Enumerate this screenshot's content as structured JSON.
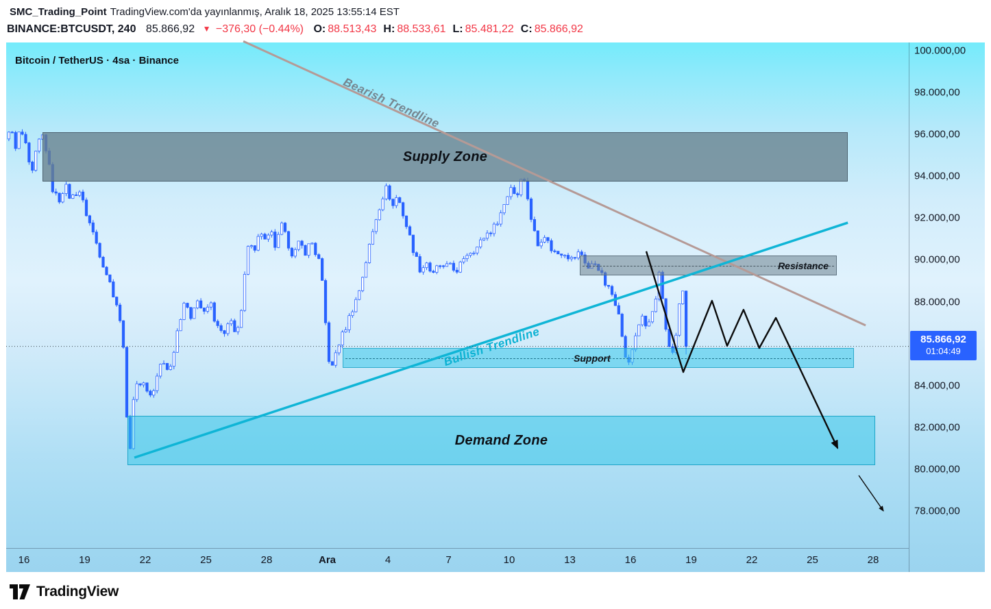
{
  "header": {
    "author": "SMC_Trading_Point",
    "published": "TradingView.com'da yayınlanmış, Aralık 18, 2025 13:55:14 EST",
    "symbol_interval": "BINANCE:BTCUSDT, 240",
    "last_price": "85.866,92",
    "change_icon": "▼",
    "change": "−376,30 (−0.44%)",
    "ohlc": [
      {
        "label": "O:",
        "value": "88.513,43"
      },
      {
        "label": "H:",
        "value": "88.533,61"
      },
      {
        "label": "L:",
        "value": "85.481,22"
      },
      {
        "label": "C:",
        "value": "85.866,92"
      }
    ]
  },
  "chart": {
    "watermark": "Bitcoin / TetherUS · 4sa · Binance",
    "zones": {
      "supply": {
        "label": "Supply Zone"
      },
      "demand": {
        "label": "Demand Zone"
      },
      "resistance": {
        "label": "Resistance"
      },
      "support": {
        "label": "Support"
      }
    },
    "trendlines": {
      "bearish": {
        "label": "Bearish Trendline"
      },
      "bullish": {
        "label": "Bullish Trendline"
      }
    },
    "price_label": {
      "price": "85.866,92",
      "countdown": "01:04:49"
    }
  },
  "chart_data": {
    "type": "candlestick",
    "symbol": "BINANCE:BTCUSDT",
    "title": "Bitcoin / TetherUS · 4sa · Binance",
    "interval_minutes": 240,
    "current_price": 85866.92,
    "y_range": [
      77600,
      100400
    ],
    "last_candle_ohlc": {
      "open": 88513.43,
      "high": 88533.61,
      "low": 85481.22,
      "close": 85866.92
    },
    "price_axis": [
      {
        "label": "100.000,00",
        "value": 100000
      },
      {
        "label": "98.000,00",
        "value": 98000
      },
      {
        "label": "96.000,00",
        "value": 96000
      },
      {
        "label": "94.000,00",
        "value": 94000
      },
      {
        "label": "92.000,00",
        "value": 92000
      },
      {
        "label": "90.000,00",
        "value": 90000
      },
      {
        "label": "88.000,00",
        "value": 88000
      },
      {
        "label": "84.000,00",
        "value": 84000
      },
      {
        "label": "82.000,00",
        "value": 82000
      },
      {
        "label": "80.000,00",
        "value": 80000
      },
      {
        "label": "78.000,00",
        "value": 78000
      }
    ],
    "time_axis": [
      {
        "label": "16",
        "day": 0
      },
      {
        "label": "19",
        "day": 3
      },
      {
        "label": "22",
        "day": 6
      },
      {
        "label": "25",
        "day": 9
      },
      {
        "label": "28",
        "day": 12
      },
      {
        "label": "Ara",
        "day": 15,
        "bold": true
      },
      {
        "label": "4",
        "day": 18
      },
      {
        "label": "7",
        "day": 21
      },
      {
        "label": "10",
        "day": 24
      },
      {
        "label": "13",
        "day": 27
      },
      {
        "label": "16",
        "day": 30
      },
      {
        "label": "19",
        "day": 33
      },
      {
        "label": "22",
        "day": 36
      },
      {
        "label": "25",
        "day": 39
      },
      {
        "label": "28",
        "day": 42
      }
    ],
    "zones": {
      "supply": {
        "day_start": 0.92,
        "day_end": 40.75,
        "price_top": 96100,
        "price_bottom": 93750
      },
      "demand": {
        "day_start": 5.12,
        "day_end": 42.1,
        "price_top": 82550,
        "price_bottom": 80200
      },
      "resistance": {
        "day_start": 27.49,
        "day_end": 40.2,
        "price_top": 90200,
        "price_bottom": 89250
      },
      "support": {
        "day_start": 15.76,
        "day_end": 41.05,
        "price_top": 85800,
        "price_bottom": 84850
      }
    },
    "trendlines": {
      "bearish": {
        "day1": 10.85,
        "price1": 100450,
        "day2": 41.63,
        "price2": 86870
      },
      "bullish": {
        "day1": 5.46,
        "price1": 80550,
        "day2": 40.75,
        "price2": 91780
      }
    },
    "projection_path": [
      [
        30.78,
        90410
      ],
      [
        32.61,
        84640
      ],
      [
        34.03,
        88050
      ],
      [
        34.78,
        85890
      ],
      [
        35.59,
        87620
      ],
      [
        36.37,
        85790
      ],
      [
        37.19,
        87230
      ],
      [
        40.24,
        81010
      ]
    ],
    "continuation_arrow": [
      [
        41.29,
        79700
      ],
      [
        42.51,
        78000
      ]
    ],
    "candles_start_day": -0.8333,
    "candle_count": 202,
    "price_path_waypoints": [
      [
        -0.85,
        95600
      ],
      [
        -0.6,
        96500
      ],
      [
        -0.35,
        95200
      ],
      [
        -0.1,
        96300
      ],
      [
        0.15,
        95500
      ],
      [
        0.45,
        93900
      ],
      [
        0.7,
        95200
      ],
      [
        0.95,
        96100
      ],
      [
        1.2,
        95200
      ],
      [
        1.5,
        93400
      ],
      [
        1.8,
        92800
      ],
      [
        2.1,
        93600
      ],
      [
        2.4,
        92900
      ],
      [
        2.8,
        93400
      ],
      [
        3.1,
        92400
      ],
      [
        3.5,
        91300
      ],
      [
        3.9,
        90100
      ],
      [
        4.3,
        89000
      ],
      [
        4.7,
        87800
      ],
      [
        5.0,
        86000
      ],
      [
        5.15,
        82500
      ],
      [
        5.3,
        80700
      ],
      [
        5.5,
        83400
      ],
      [
        5.75,
        84200
      ],
      [
        6.0,
        84100
      ],
      [
        6.4,
        83400
      ],
      [
        6.9,
        85200
      ],
      [
        7.3,
        84700
      ],
      [
        7.7,
        86800
      ],
      [
        8.0,
        88000
      ],
      [
        8.3,
        87200
      ],
      [
        8.6,
        88200
      ],
      [
        9.0,
        87400
      ],
      [
        9.3,
        88000
      ],
      [
        9.6,
        86800
      ],
      [
        10.0,
        86400
      ],
      [
        10.3,
        87100
      ],
      [
        10.6,
        86500
      ],
      [
        10.85,
        87500
      ],
      [
        11.05,
        89800
      ],
      [
        11.25,
        91000
      ],
      [
        11.5,
        90600
      ],
      [
        11.8,
        91400
      ],
      [
        12.05,
        90800
      ],
      [
        12.3,
        91300
      ],
      [
        12.55,
        90500
      ],
      [
        12.8,
        91700
      ],
      [
        13.1,
        90900
      ],
      [
        13.4,
        90200
      ],
      [
        13.7,
        90800
      ],
      [
        14.0,
        90400
      ],
      [
        14.3,
        90900
      ],
      [
        14.55,
        90200
      ],
      [
        14.75,
        89800
      ],
      [
        14.95,
        87500
      ],
      [
        15.15,
        85300
      ],
      [
        15.35,
        84800
      ],
      [
        15.55,
        85800
      ],
      [
        15.75,
        86200
      ],
      [
        16.0,
        86800
      ],
      [
        16.3,
        87600
      ],
      [
        16.6,
        88300
      ],
      [
        16.9,
        89500
      ],
      [
        17.2,
        90800
      ],
      [
        17.5,
        92000
      ],
      [
        17.8,
        93000
      ],
      [
        18.05,
        93500
      ],
      [
        18.3,
        92500
      ],
      [
        18.55,
        93100
      ],
      [
        18.8,
        92300
      ],
      [
        19.1,
        91300
      ],
      [
        19.4,
        90300
      ],
      [
        19.7,
        89500
      ],
      [
        20.0,
        89900
      ],
      [
        20.3,
        89200
      ],
      [
        20.6,
        89800
      ],
      [
        20.9,
        89500
      ],
      [
        21.2,
        89900
      ],
      [
        21.5,
        89300
      ],
      [
        21.8,
        90100
      ],
      [
        22.1,
        90400
      ],
      [
        22.5,
        90600
      ],
      [
        22.9,
        91200
      ],
      [
        23.3,
        91500
      ],
      [
        23.7,
        92300
      ],
      [
        24.0,
        93100
      ],
      [
        24.2,
        93600
      ],
      [
        24.45,
        92900
      ],
      [
        24.7,
        94200
      ],
      [
        24.95,
        93300
      ],
      [
        25.2,
        91800
      ],
      [
        25.5,
        90700
      ],
      [
        25.8,
        91300
      ],
      [
        26.1,
        90600
      ],
      [
        26.4,
        90300
      ],
      [
        26.8,
        90400
      ],
      [
        27.2,
        90000
      ],
      [
        27.6,
        90400
      ],
      [
        28.0,
        89600
      ],
      [
        28.4,
        89900
      ],
      [
        28.8,
        88900
      ],
      [
        29.2,
        88300
      ],
      [
        29.5,
        87600
      ],
      [
        29.75,
        85600
      ],
      [
        30.0,
        85000
      ],
      [
        30.3,
        86300
      ],
      [
        30.6,
        87300
      ],
      [
        30.9,
        86700
      ],
      [
        31.2,
        87600
      ],
      [
        31.45,
        88400
      ],
      [
        31.55,
        90100
      ],
      [
        31.7,
        87400
      ],
      [
        31.9,
        86300
      ],
      [
        32.1,
        85500
      ],
      [
        32.3,
        86100
      ],
      [
        32.5,
        87900
      ],
      [
        32.667,
        88513
      ],
      [
        32.833,
        85867
      ]
    ]
  },
  "footer": {
    "brand": "TradingView"
  },
  "colors": {
    "accent_blue": "#2962FF",
    "red": "#F23645",
    "candle_up_fill": "#FFFFFF",
    "candle_down_fill": "#2962FF",
    "candle_outline": "#2962FF",
    "bullish_trendline": "#0FB5D6",
    "bearish_trendline": "#B59A96",
    "supply_zone": "#68808D",
    "demand_zone": "#2FC6E7",
    "resistance_zone": "#6E828E",
    "support_zone": "#3CC8EB",
    "projection": "#0B0B0B",
    "price_label_bg": "#2962FF"
  }
}
